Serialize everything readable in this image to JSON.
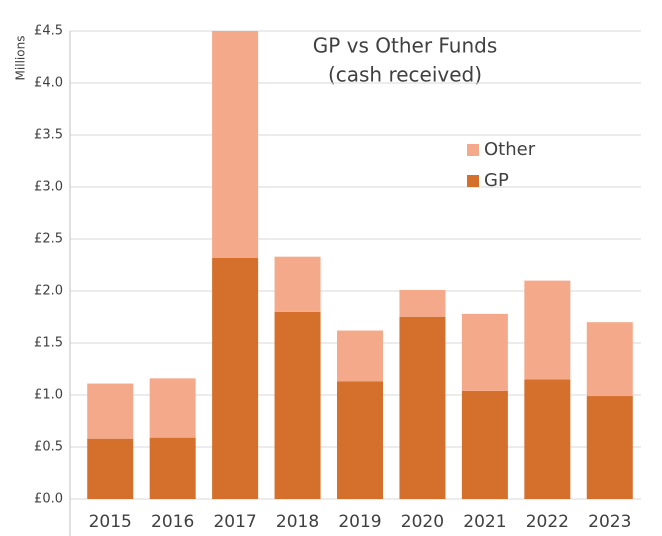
{
  "chart_data": {
    "type": "bar",
    "stacked": true,
    "title": "GP vs Other Funds",
    "subtitle": "(cash received)",
    "y_label": "Millions",
    "categories": [
      "2015",
      "2016",
      "2017",
      "2018",
      "2019",
      "2020",
      "2021",
      "2022",
      "2023"
    ],
    "series": [
      {
        "name": "GP",
        "color": "#d4702b",
        "values": [
          0.58,
          0.59,
          2.32,
          1.8,
          1.13,
          1.75,
          1.04,
          1.15,
          0.99
        ]
      },
      {
        "name": "Other",
        "color": "#f4a98a",
        "values": [
          0.53,
          0.57,
          2.18,
          0.53,
          0.49,
          0.26,
          0.74,
          0.95,
          0.71
        ]
      }
    ],
    "ylim": [
      0,
      4.5
    ],
    "yticks": [
      {
        "value": 0,
        "label": "£0.0"
      },
      {
        "value": 0.5,
        "label": "£0.5"
      },
      {
        "value": 1,
        "label": "£1.0"
      },
      {
        "value": 1.5,
        "label": "£1.5"
      },
      {
        "value": 2,
        "label": "£2.0"
      },
      {
        "value": 2.5,
        "label": "£2.5"
      },
      {
        "value": 3,
        "label": "£3.0"
      },
      {
        "value": 3.5,
        "label": "£3.5"
      },
      {
        "value": 4,
        "label": "£4.0"
      },
      {
        "value": 4.5,
        "label": "£4.5"
      }
    ],
    "grid": true
  }
}
